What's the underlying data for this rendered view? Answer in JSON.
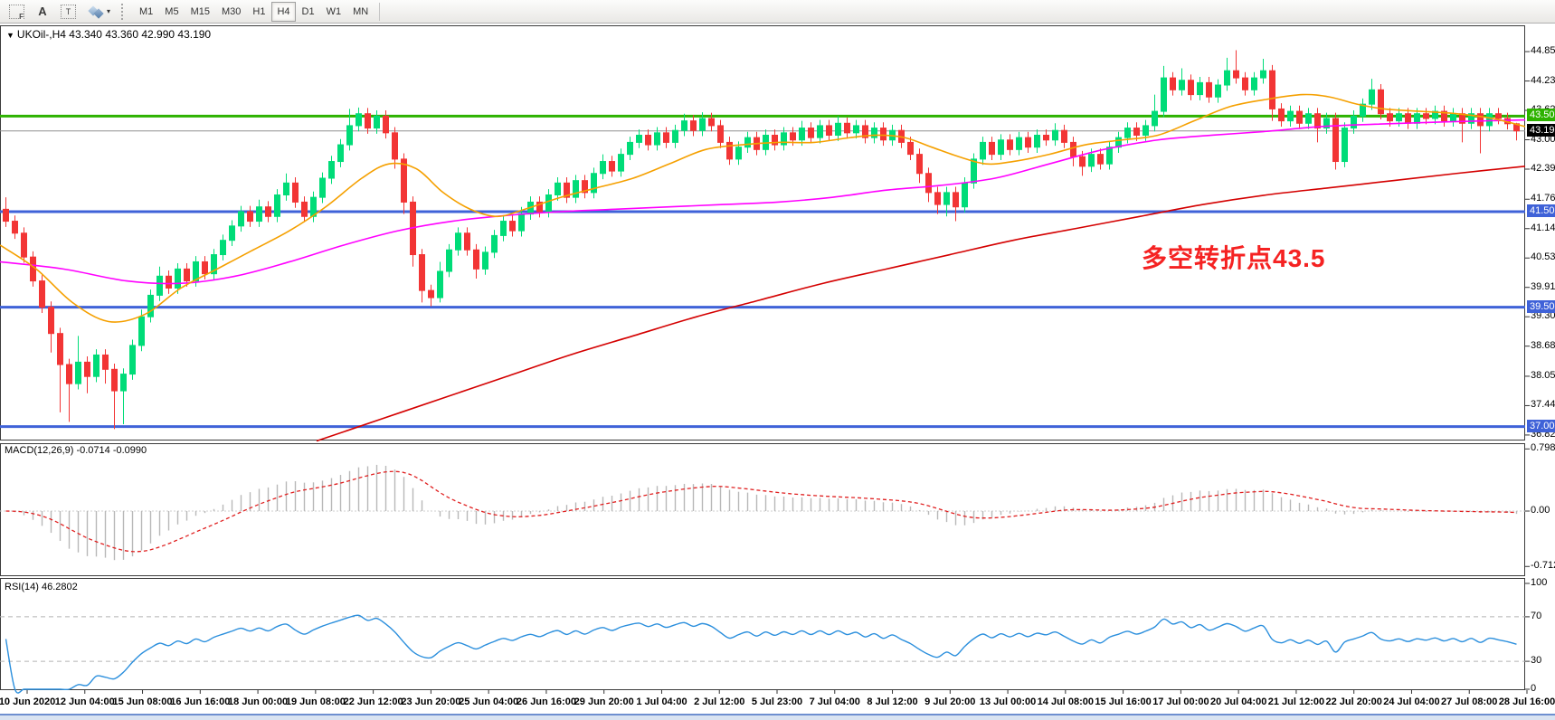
{
  "toolbar": {
    "icon_buttons": [
      {
        "name": "indicator-frame-button",
        "glyph": "F"
      },
      {
        "name": "font-tool-button",
        "glyph": "A"
      },
      {
        "name": "text-label-tool-button",
        "glyph": "T"
      },
      {
        "name": "object-style-button",
        "glyph": "diamonds",
        "caret": "▾"
      }
    ],
    "timeframes": [
      "M1",
      "M5",
      "M15",
      "M30",
      "H1",
      "H4",
      "D1",
      "W1",
      "MN"
    ],
    "active_timeframe": "H4"
  },
  "chart": {
    "symbol_period": "UKOil-,H4",
    "ohlc": "43.340 43.360 42.990 43.190",
    "collapse_icon": "▼"
  },
  "annotation": {
    "text": "多空转折点43.5",
    "color": "#f52222"
  },
  "price_axis": {
    "ticks": [
      "44.850",
      "44.235",
      "43.620",
      "43.005",
      "42.390",
      "41.760",
      "41.145",
      "40.530",
      "39.915",
      "39.300",
      "38.685",
      "38.055",
      "37.440",
      "36.825"
    ]
  },
  "levels": [
    {
      "label": "43.500",
      "price": 43.5,
      "color": "#2db200",
      "width": 3
    },
    {
      "label": "43.190",
      "price": 43.19,
      "color": "#909090",
      "width": 1,
      "label_bg": "#000000"
    },
    {
      "label": "41.500",
      "price": 41.5,
      "color": "#3f62d8",
      "width": 3
    },
    {
      "label": "39.500",
      "price": 39.5,
      "color": "#3f62d8",
      "width": 3
    },
    {
      "label": "37.000",
      "price": 37.0,
      "color": "#3f62d8",
      "width": 3
    }
  ],
  "macd": {
    "label": "MACD(12,26,9) -0.0714 -0.0990",
    "params": [
      12,
      26,
      9
    ],
    "value": -0.0714,
    "signal_value": -0.099,
    "ticks": [
      {
        "text": "0.7986",
        "v": 0.7986
      },
      {
        "text": "0.00",
        "v": 0
      },
      {
        "text": "-0.7124",
        "v": -0.7124
      }
    ]
  },
  "rsi": {
    "label": "RSI(14) 46.2802",
    "period": 14,
    "value": 46.2802,
    "ticks": [
      {
        "text": "100",
        "v": 100
      },
      {
        "text": "70",
        "v": 70
      },
      {
        "text": "30",
        "v": 30
      },
      {
        "text": "0",
        "v": 0
      }
    ],
    "levels": [
      70,
      30
    ]
  },
  "time_axis": {
    "labels": [
      "10 Jun 2020",
      "12 Jun 04:00",
      "15 Jun 08:00",
      "16 Jun 16:00",
      "18 Jun 00:00",
      "19 Jun 08:00",
      "22 Jun 12:00",
      "23 Jun 20:00",
      "25 Jun 04:00",
      "26 Jun 16:00",
      "29 Jun 20:00",
      "1 Jul 04:00",
      "2 Jul 12:00",
      "5 Jul 23:00",
      "7 Jul 04:00",
      "8 Jul 12:00",
      "9 Jul 20:00",
      "13 Jul 00:00",
      "14 Jul 08:00",
      "15 Jul 16:00",
      "17 Jul 00:00",
      "20 Jul 04:00",
      "21 Jul 12:00",
      "22 Jul 20:00",
      "24 Jul 04:00",
      "27 Jul 08:00",
      "28 Jul 16:00"
    ]
  },
  "chart_data": {
    "type": "candlestick",
    "symbol": "UKOil-",
    "period": "H4",
    "ylim": [
      36.71,
      45.4
    ],
    "first_open": 41.55,
    "closes": [
      41.3,
      41.05,
      40.55,
      40.05,
      39.5,
      38.95,
      38.3,
      37.9,
      38.35,
      38.05,
      38.5,
      38.2,
      37.75,
      38.1,
      38.7,
      39.3,
      39.75,
      40.15,
      39.9,
      40.3,
      40.05,
      40.45,
      40.2,
      40.6,
      40.9,
      41.2,
      41.5,
      41.3,
      41.6,
      41.4,
      41.85,
      42.1,
      41.7,
      41.4,
      41.8,
      42.2,
      42.55,
      42.9,
      43.3,
      43.55,
      43.25,
      43.5,
      43.15,
      42.6,
      41.7,
      40.6,
      39.85,
      39.7,
      40.25,
      40.7,
      41.05,
      40.7,
      40.3,
      40.65,
      41.0,
      41.3,
      41.1,
      41.45,
      41.7,
      41.5,
      41.85,
      42.1,
      41.8,
      42.15,
      41.9,
      42.3,
      42.55,
      42.35,
      42.7,
      42.95,
      43.1,
      42.9,
      43.15,
      42.95,
      43.2,
      43.4,
      43.2,
      43.45,
      43.3,
      42.95,
      42.6,
      42.85,
      43.05,
      42.8,
      43.1,
      42.9,
      43.15,
      43.0,
      43.25,
      43.05,
      43.3,
      43.1,
      43.35,
      43.15,
      43.3,
      43.05,
      43.25,
      43.0,
      43.2,
      42.95,
      42.7,
      42.3,
      41.9,
      41.65,
      41.9,
      41.6,
      42.1,
      42.6,
      42.95,
      42.7,
      43.0,
      42.8,
      43.05,
      42.85,
      43.1,
      43.0,
      43.2,
      42.95,
      42.65,
      42.45,
      42.7,
      42.5,
      42.85,
      43.05,
      43.25,
      43.1,
      43.3,
      43.6,
      44.3,
      44.05,
      44.25,
      43.95,
      44.2,
      43.9,
      44.15,
      44.45,
      44.3,
      44.05,
      44.3,
      44.45,
      43.65,
      43.4,
      43.6,
      43.35,
      43.55,
      43.25,
      43.45,
      42.55,
      43.25,
      43.5,
      43.75,
      44.05,
      43.55,
      43.4,
      43.55,
      43.35,
      43.55,
      43.45,
      43.6,
      43.4,
      43.55,
      43.35,
      43.55,
      43.3,
      43.55,
      43.45,
      43.34,
      43.19
    ],
    "wick_high": {
      "0": 41.8,
      "8": 38.9,
      "15": 39.45,
      "17": 40.35,
      "28": 41.75,
      "31": 42.3,
      "38": 43.65,
      "39": 43.68,
      "41": 43.62,
      "48": 40.45,
      "57": 41.6,
      "66": 42.7,
      "75": 43.55,
      "77": 43.58,
      "88": 43.4,
      "92": 43.5,
      "116": 43.35,
      "127": 43.95,
      "128": 44.55,
      "130": 44.5,
      "135": 44.72,
      "136": 44.88,
      "139": 44.7,
      "151": 44.28,
      "167": 43.36
    },
    "wick_low": {
      "5": 38.55,
      "6": 37.3,
      "7": 37.1,
      "9": 37.7,
      "11": 37.9,
      "12": 36.95,
      "13": 37.05,
      "43": 42.4,
      "44": 41.45,
      "45": 40.35,
      "46": 39.6,
      "47": 39.52,
      "48": 39.6,
      "52": 40.1,
      "101": 42.1,
      "102": 41.7,
      "103": 41.45,
      "104": 41.4,
      "105": 41.3,
      "118": 42.45,
      "119": 42.25,
      "140": 43.4,
      "145": 42.95,
      "147": 42.38,
      "161": 42.95,
      "163": 42.72,
      "167": 42.99
    },
    "ma": {
      "magenta": [
        [
          0,
          40.45
        ],
        [
          70,
          40.3
        ],
        [
          140,
          40.05
        ],
        [
          200,
          40.0
        ],
        [
          260,
          40.15
        ],
        [
          320,
          40.45
        ],
        [
          380,
          40.8
        ],
        [
          440,
          41.1
        ],
        [
          500,
          41.3
        ],
        [
          560,
          41.42
        ],
        [
          620,
          41.5
        ],
        [
          680,
          41.55
        ],
        [
          740,
          41.6
        ],
        [
          800,
          41.65
        ],
        [
          860,
          41.7
        ],
        [
          920,
          41.8
        ],
        [
          980,
          41.95
        ],
        [
          1040,
          42.05
        ],
        [
          1100,
          42.2
        ],
        [
          1160,
          42.5
        ],
        [
          1220,
          42.8
        ],
        [
          1280,
          43.0
        ],
        [
          1340,
          43.1
        ],
        [
          1400,
          43.18
        ],
        [
          1460,
          43.28
        ],
        [
          1520,
          43.33
        ],
        [
          1600,
          43.38
        ],
        [
          1686,
          43.42
        ]
      ],
      "orange": [
        [
          0,
          40.8
        ],
        [
          40,
          40.3
        ],
        [
          80,
          39.6
        ],
        [
          120,
          39.2
        ],
        [
          160,
          39.35
        ],
        [
          200,
          39.9
        ],
        [
          240,
          40.3
        ],
        [
          280,
          40.7
        ],
        [
          320,
          41.1
        ],
        [
          360,
          41.6
        ],
        [
          400,
          42.2
        ],
        [
          430,
          42.5
        ],
        [
          460,
          42.4
        ],
        [
          490,
          41.9
        ],
        [
          520,
          41.55
        ],
        [
          550,
          41.4
        ],
        [
          580,
          41.55
        ],
        [
          620,
          41.8
        ],
        [
          660,
          42.0
        ],
        [
          700,
          42.2
        ],
        [
          740,
          42.5
        ],
        [
          780,
          42.8
        ],
        [
          820,
          42.9
        ],
        [
          860,
          42.95
        ],
        [
          900,
          42.95
        ],
        [
          940,
          43.05
        ],
        [
          970,
          43.1
        ],
        [
          1000,
          43.05
        ],
        [
          1030,
          42.85
        ],
        [
          1060,
          42.65
        ],
        [
          1090,
          42.5
        ],
        [
          1120,
          42.55
        ],
        [
          1160,
          42.7
        ],
        [
          1200,
          42.9
        ],
        [
          1240,
          43.0
        ],
        [
          1280,
          43.1
        ],
        [
          1320,
          43.4
        ],
        [
          1360,
          43.7
        ],
        [
          1400,
          43.85
        ],
        [
          1440,
          43.95
        ],
        [
          1470,
          43.9
        ],
        [
          1500,
          43.75
        ],
        [
          1530,
          43.65
        ],
        [
          1570,
          43.6
        ],
        [
          1610,
          43.55
        ],
        [
          1650,
          43.45
        ],
        [
          1686,
          43.28
        ]
      ],
      "red": [
        [
          350,
          36.7
        ],
        [
          420,
          37.15
        ],
        [
          490,
          37.6
        ],
        [
          560,
          38.05
        ],
        [
          630,
          38.5
        ],
        [
          700,
          38.9
        ],
        [
          770,
          39.3
        ],
        [
          840,
          39.65
        ],
        [
          910,
          40.0
        ],
        [
          980,
          40.3
        ],
        [
          1050,
          40.6
        ],
        [
          1120,
          40.9
        ],
        [
          1190,
          41.15
        ],
        [
          1260,
          41.4
        ],
        [
          1330,
          41.65
        ],
        [
          1400,
          41.85
        ],
        [
          1470,
          42.0
        ],
        [
          1540,
          42.15
        ],
        [
          1610,
          42.3
        ],
        [
          1686,
          42.45
        ]
      ]
    },
    "colors": {
      "up": "#00dc78",
      "down": "#f23535",
      "ma_fast": "#f5a000",
      "ma_mid": "#ff00ff",
      "ma_slow": "#d40000",
      "macd_hist": "#b8b8b8",
      "macd_signal": "#e02020",
      "rsi": "#2b8fdd",
      "level_green": "#2db200",
      "level_blue": "#3f62d8"
    }
  }
}
